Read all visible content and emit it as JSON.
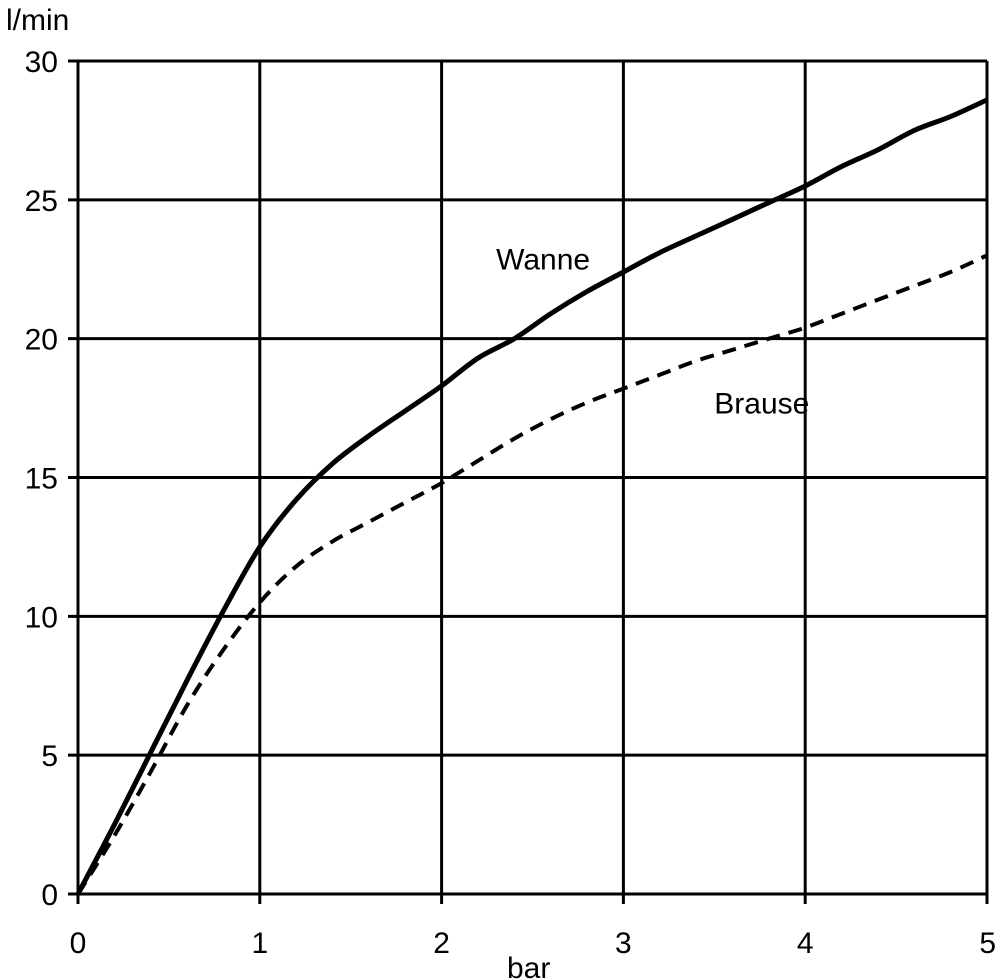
{
  "chart_data": {
    "type": "line",
    "xlabel": "bar",
    "ylabel": "l/min",
    "xlim": [
      0,
      5
    ],
    "ylim": [
      0,
      30
    ],
    "x_ticks": [
      0,
      1,
      2,
      3,
      4,
      5
    ],
    "y_ticks": [
      0,
      5,
      10,
      15,
      20,
      25,
      30
    ],
    "grid": true,
    "series": [
      {
        "name": "Wanne",
        "style": "solid",
        "color": "#000000",
        "x": [
          0,
          0.2,
          0.4,
          0.6,
          0.8,
          1.0,
          1.2,
          1.4,
          1.6,
          1.8,
          2.0,
          2.2,
          2.4,
          2.6,
          2.8,
          3.0,
          3.2,
          3.4,
          3.6,
          3.8,
          4.0,
          4.2,
          4.4,
          4.6,
          4.8,
          5.0
        ],
        "y": [
          0,
          2.5,
          5.1,
          7.7,
          10.2,
          12.5,
          14.2,
          15.5,
          16.5,
          17.4,
          18.3,
          19.3,
          20.0,
          20.9,
          21.7,
          22.4,
          23.1,
          23.7,
          24.3,
          24.9,
          25.5,
          26.2,
          26.8,
          27.5,
          28.0,
          28.6
        ]
      },
      {
        "name": "Brause",
        "style": "dashed",
        "color": "#000000",
        "x": [
          0,
          0.2,
          0.4,
          0.6,
          0.8,
          1.0,
          1.2,
          1.4,
          1.6,
          1.8,
          2.0,
          2.2,
          2.4,
          2.6,
          2.8,
          3.0,
          3.2,
          3.4,
          3.6,
          3.8,
          4.0,
          4.2,
          4.4,
          4.6,
          4.8,
          5.0
        ],
        "y": [
          0,
          2.1,
          4.4,
          6.8,
          8.8,
          10.5,
          11.8,
          12.7,
          13.4,
          14.1,
          14.8,
          15.6,
          16.4,
          17.1,
          17.7,
          18.2,
          18.7,
          19.2,
          19.6,
          20.0,
          20.4,
          20.9,
          21.4,
          21.9,
          22.4,
          23.0
        ]
      }
    ],
    "annotations": [
      {
        "text": "Wanne",
        "x": 2.3,
        "y": 22.5
      },
      {
        "text": "Brause",
        "x": 3.5,
        "y": 17.3
      }
    ]
  }
}
